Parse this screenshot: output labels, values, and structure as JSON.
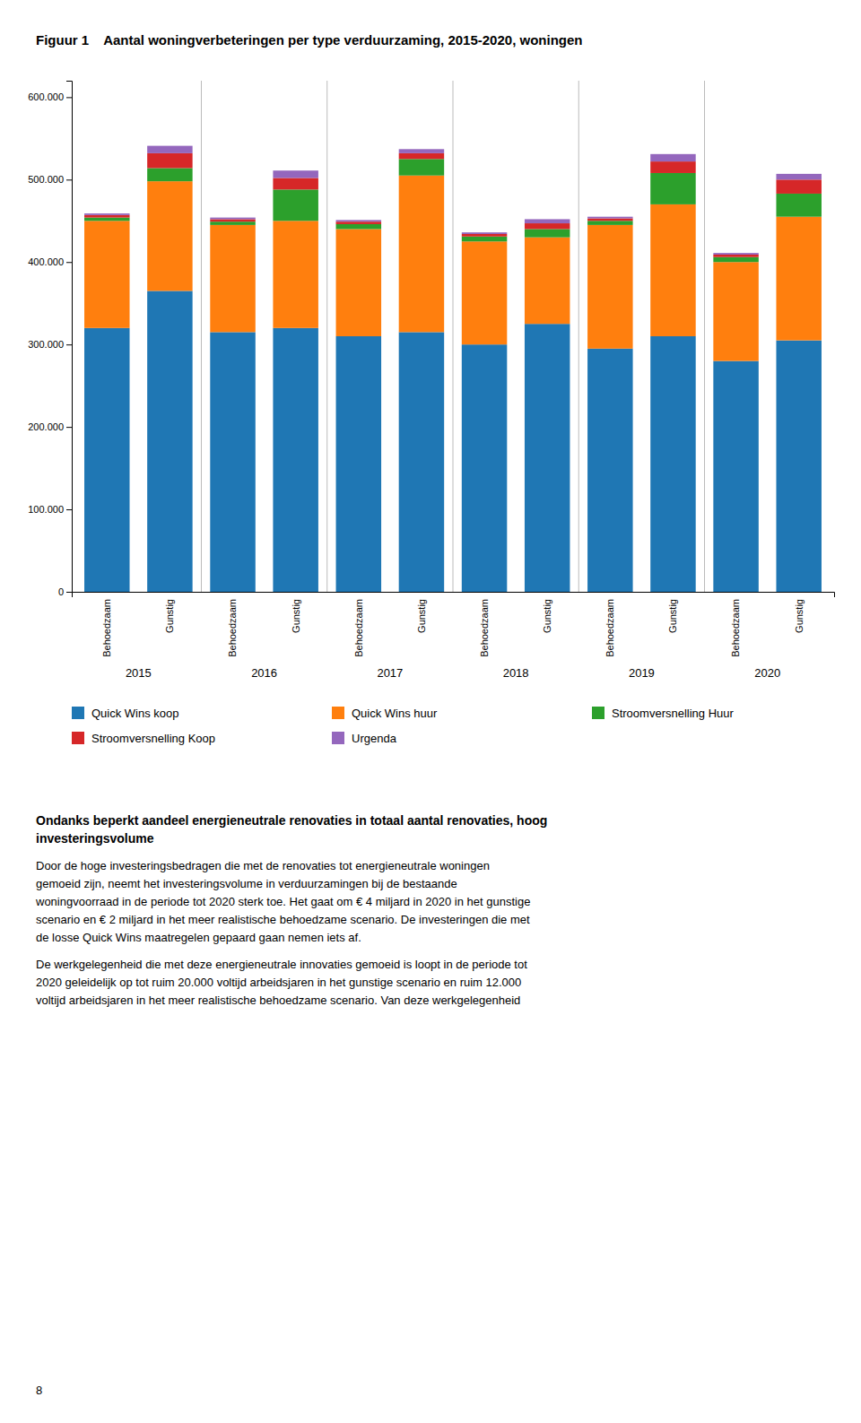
{
  "chart_data": {
    "type": "bar",
    "stacked": true,
    "grid": false,
    "legend": "bottom",
    "title": "Aantal woningverbeteringen per type verduurzaming, 2015-2020, woningen",
    "categories": [
      "Behoedzaam",
      "Gunstig",
      "Behoedzaam",
      "Gunstig",
      "Behoedzaam",
      "Gunstig",
      "Behoedzaam",
      "Gunstig",
      "Behoedzaam",
      "Gunstig",
      "Behoedzaam",
      "Gunstig"
    ],
    "groups": [
      "2015",
      "2016",
      "2017",
      "2018",
      "2019",
      "2020"
    ],
    "series": [
      {
        "name": "Quick Wins koop",
        "values": [
          320000,
          365000,
          315000,
          320000,
          310000,
          315000,
          300000,
          325000,
          295000,
          310000,
          280000,
          305000
        ]
      },
      {
        "name": "Quick Wins huur",
        "values": [
          130000,
          133000,
          130000,
          130000,
          130000,
          190000,
          125000,
          105000,
          150000,
          160000,
          120000,
          150000
        ]
      },
      {
        "name": "Stroomversnelling Huur",
        "values": [
          4000,
          16000,
          4000,
          38000,
          6000,
          20000,
          6000,
          10000,
          5000,
          38000,
          6000,
          28000
        ]
      },
      {
        "name": "Stroomversnelling Koop",
        "values": [
          3000,
          18000,
          3000,
          14000,
          3000,
          7000,
          3000,
          7000,
          3000,
          14000,
          3000,
          17000
        ]
      },
      {
        "name": "Urgenda",
        "values": [
          2000,
          9000,
          2000,
          9000,
          2000,
          5000,
          2000,
          5000,
          2000,
          9000,
          2000,
          7000
        ]
      }
    ],
    "ylim": [
      0,
      620000
    ],
    "yticks": [
      0,
      {
        "value": 100000,
        "label": "100.000"
      },
      {
        "value": 200000,
        "label": "200.000"
      },
      {
        "value": 300000,
        "label": "300.000"
      },
      {
        "value": 400000,
        "label": "400.000"
      },
      {
        "value": 500000,
        "label": "500.000"
      },
      {
        "value": 600000,
        "label": "600.000"
      }
    ],
    "annotations": [
      "Figuur 1",
      "Ondanks beperkt aandeel energieneutrale renovaties in totaal aantal renovaties, hoog",
      "investeringsvolume",
      "Door de hoge investeringsbedragen die met de renovaties tot energieneutrale woningen",
      "gemoeid zijn, neemt het investeringsvolume in verduurzamingen bij de bestaande",
      "woningvoorraad in de periode tot 2020 sterk toe. Het gaat om € 4 miljard in 2020 in het gunstige",
      "scenario en € 2 miljard in het meer realistische behoedzame scenario. De investeringen die met",
      "de losse Quick Wins maatregelen gepaard gaan nemen iets af.",
      "De werkgelegenheid die met deze energieneutrale innovaties gemoeid is loopt in de periode tot",
      "2020 geleidelijk op tot ruim 20.000 voltijd arbeidsjaren in het gunstige scenario en ruim 12.000",
      "voltijd arbeidsjaren in het meer realistische behoedzame scenario. Van deze werkgelegenheid",
      "8"
    ]
  }
}
